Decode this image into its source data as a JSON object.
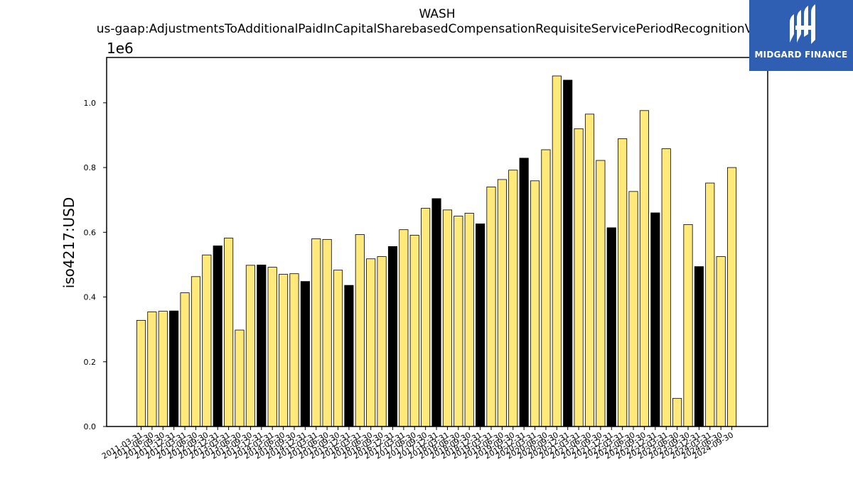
{
  "logo": {
    "text": "MIDGARD FINANCE",
    "icon": "midgard-logo-icon",
    "background": "#2f5fb3"
  },
  "chart_data": {
    "type": "bar",
    "title": "WASH",
    "subtitle": "us-gaap:AdjustmentsToAdditionalPaidInCapitalSharebasedCompensationRequisiteServicePeriodRecognitionValue",
    "ylabel": "iso4217:USD",
    "xlabel": "",
    "y_offset_label": "1e6",
    "ylim": [
      0,
      1.14
    ],
    "y_ticks": [
      "0.0",
      "0.2",
      "0.4",
      "0.6",
      "0.8",
      "1.0"
    ],
    "grid": false,
    "colors": {
      "q": "#ffe97a",
      "fy": "#000000"
    },
    "categories": [
      "2011-03-31",
      "2011-06-30",
      "2011-09-30",
      "2011-12-31",
      "2012-03-31",
      "2012-06-30",
      "2012-09-30",
      "2012-12-31",
      "2013-03-31",
      "2013-06-30",
      "2013-09-30",
      "2013-12-31",
      "2014-03-31",
      "2014-06-30",
      "2014-09-30",
      "2014-12-31",
      "2015-03-31",
      "2015-06-30",
      "2015-09-30",
      "2015-12-31",
      "2016-03-31",
      "2016-06-30",
      "2016-09-30",
      "2016-12-31",
      "2017-03-31",
      "2017-06-30",
      "2017-09-30",
      "2017-12-31",
      "2018-03-31",
      "2018-06-30",
      "2018-09-30",
      "2018-12-31",
      "2019-03-31",
      "2019-06-30",
      "2019-09-30",
      "2019-12-31",
      "2020-03-31",
      "2020-06-30",
      "2020-09-30",
      "2020-12-31",
      "2021-03-31",
      "2021-06-30",
      "2021-09-30",
      "2021-12-31",
      "2022-03-31",
      "2022-06-30",
      "2022-09-30",
      "2022-12-31",
      "2023-03-31",
      "2023-06-30",
      "2023-09-30",
      "2023-12-31",
      "2024-03-31",
      "2024-06-30",
      "2024-09-30"
    ],
    "values": [
      0.328,
      0.354,
      0.356,
      0.357,
      0.413,
      0.463,
      0.53,
      0.558,
      0.582,
      0.298,
      0.498,
      0.499,
      0.492,
      0.47,
      0.472,
      0.448,
      0.58,
      0.578,
      0.483,
      0.436,
      0.593,
      0.518,
      0.525,
      0.556,
      0.608,
      0.591,
      0.674,
      0.704,
      0.669,
      0.65,
      0.659,
      0.626,
      0.74,
      0.763,
      0.792,
      0.829,
      0.759,
      0.855,
      1.083,
      1.07,
      0.92,
      0.965,
      0.822,
      0.614,
      0.889,
      0.726,
      0.976,
      0.66,
      0.858,
      0.087,
      0.624,
      0.494,
      0.752,
      0.525,
      0.8
    ],
    "annual": [
      false,
      false,
      false,
      true,
      false,
      false,
      false,
      true,
      false,
      false,
      false,
      true,
      false,
      false,
      false,
      true,
      false,
      false,
      false,
      true,
      false,
      false,
      false,
      true,
      false,
      false,
      false,
      true,
      false,
      false,
      false,
      true,
      false,
      false,
      false,
      true,
      false,
      false,
      false,
      true,
      false,
      false,
      false,
      true,
      false,
      false,
      false,
      true,
      false,
      false,
      false,
      true,
      false,
      false,
      false
    ]
  }
}
